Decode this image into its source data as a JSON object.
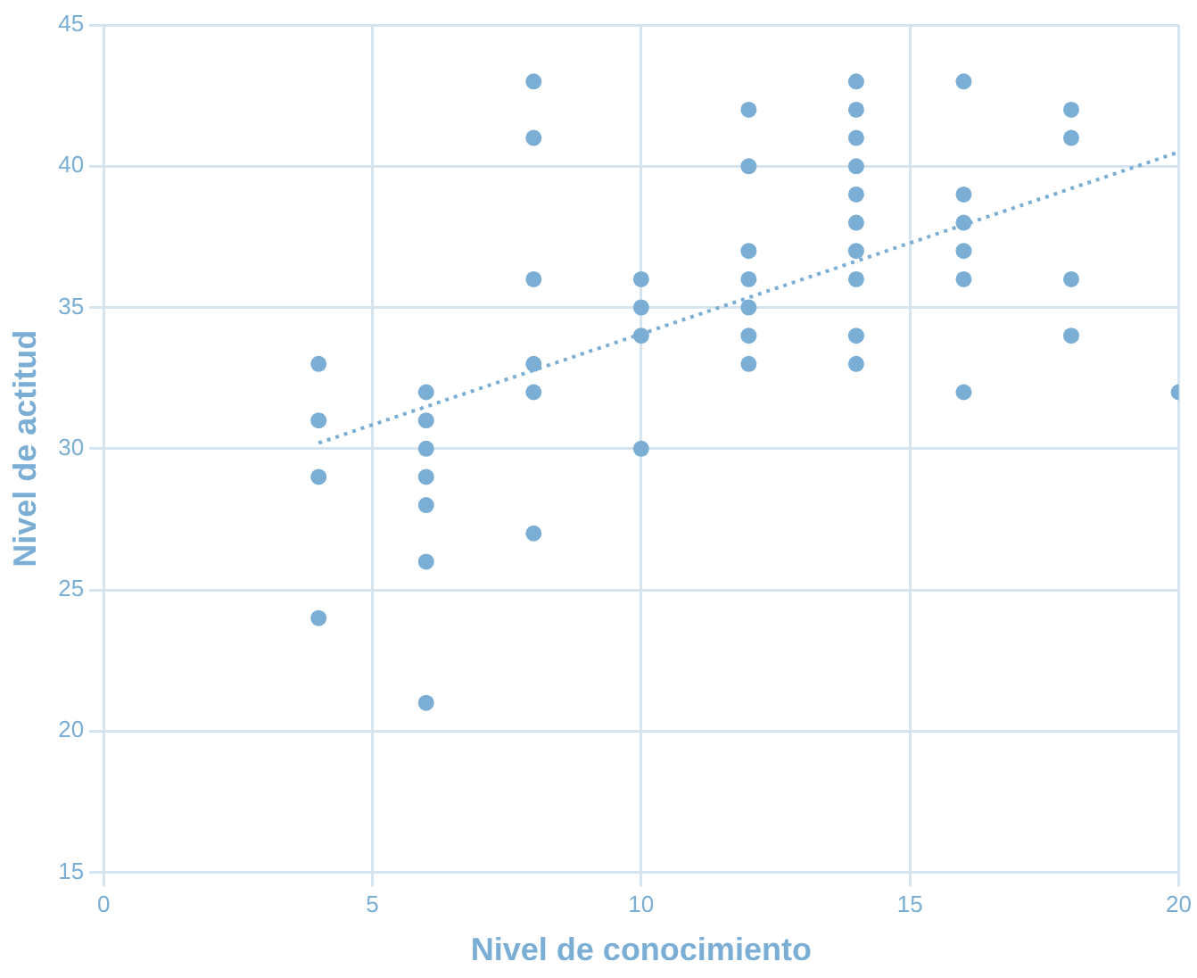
{
  "chart_data": {
    "type": "scatter",
    "xlabel": "Nivel de conocimiento",
    "ylabel": "Nivel de actitud",
    "xlim": [
      0,
      20
    ],
    "xticks": [
      0,
      5,
      10,
      15,
      20
    ],
    "ylim": [
      15,
      45
    ],
    "yticks": [
      15,
      20,
      25,
      30,
      35,
      40,
      45
    ],
    "grid": true,
    "marker": "circle",
    "series": [
      {
        "type": "scatter",
        "color": "#7aaed4",
        "x": [
          4,
          4,
          4,
          4,
          6,
          6,
          6,
          6,
          6,
          6,
          6,
          8,
          8,
          8,
          8,
          8,
          8,
          10,
          10,
          10,
          10,
          12,
          12,
          12,
          12,
          12,
          12,
          12,
          14,
          14,
          14,
          14,
          14,
          14,
          14,
          14,
          14,
          14,
          16,
          16,
          16,
          16,
          16,
          16,
          18,
          18,
          18,
          18,
          20
        ],
        "values": [
          33,
          31,
          29,
          24,
          32,
          31,
          30,
          29,
          28,
          26,
          21,
          43,
          41,
          36,
          33,
          32,
          27,
          36,
          35,
          34,
          30,
          42,
          40,
          37,
          36,
          35,
          34,
          33,
          43,
          42,
          41,
          40,
          39,
          38,
          37,
          36,
          34,
          33,
          43,
          39,
          38,
          37,
          36,
          32,
          42,
          41,
          36,
          34,
          32
        ]
      },
      {
        "type": "line",
        "color": "#7aaed4",
        "line_style": "dotted",
        "marker": "none",
        "x": [
          4,
          20
        ],
        "values": [
          30.2,
          40.5
        ]
      }
    ]
  }
}
